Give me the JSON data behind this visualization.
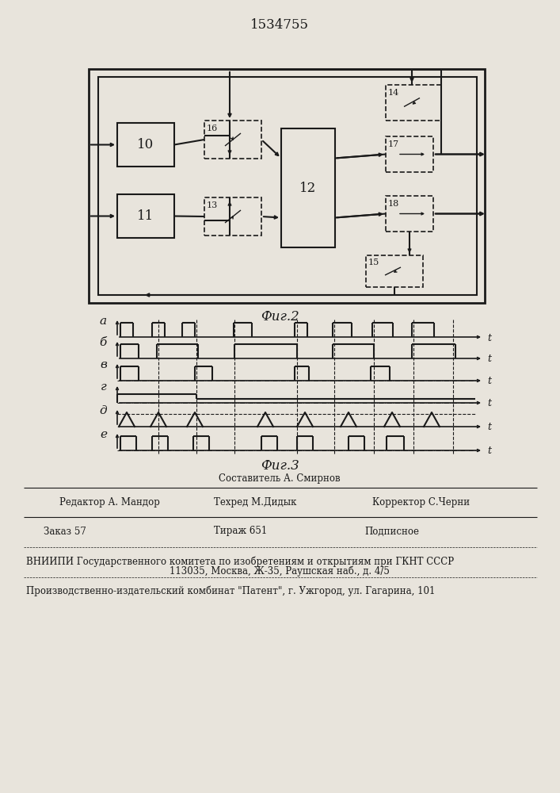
{
  "title": "1534755",
  "fig2_caption": "Фиг.2",
  "fig3_caption": "Фиг.3",
  "bg_color": "#e8e4dc",
  "line_color": "#1a1a1a",
  "footer_col1_row1": "Редактор А. Мандор",
  "footer_col2_row1": "Составитель А. Смирнов",
  "footer_col2_row2": "Техред М.Дидык",
  "footer_col3_row2": "Корректор С.Черни",
  "footer_zakaz": "Заказ 57",
  "footer_tirazh": "Тираж 651",
  "footer_podpisnoe": "Подписное",
  "footer_vniipи": "ВНИИПИ Государственного комитета по изобретениям и открытиям при ГКНТ СССР",
  "footer_address": "113035, Москва, Ж-35, Раушская наб., д. 4/5",
  "footer_patent": "Производственно-издательский комбинат \"Патент\", г. Ужгород, ул. Гагарина, 101"
}
